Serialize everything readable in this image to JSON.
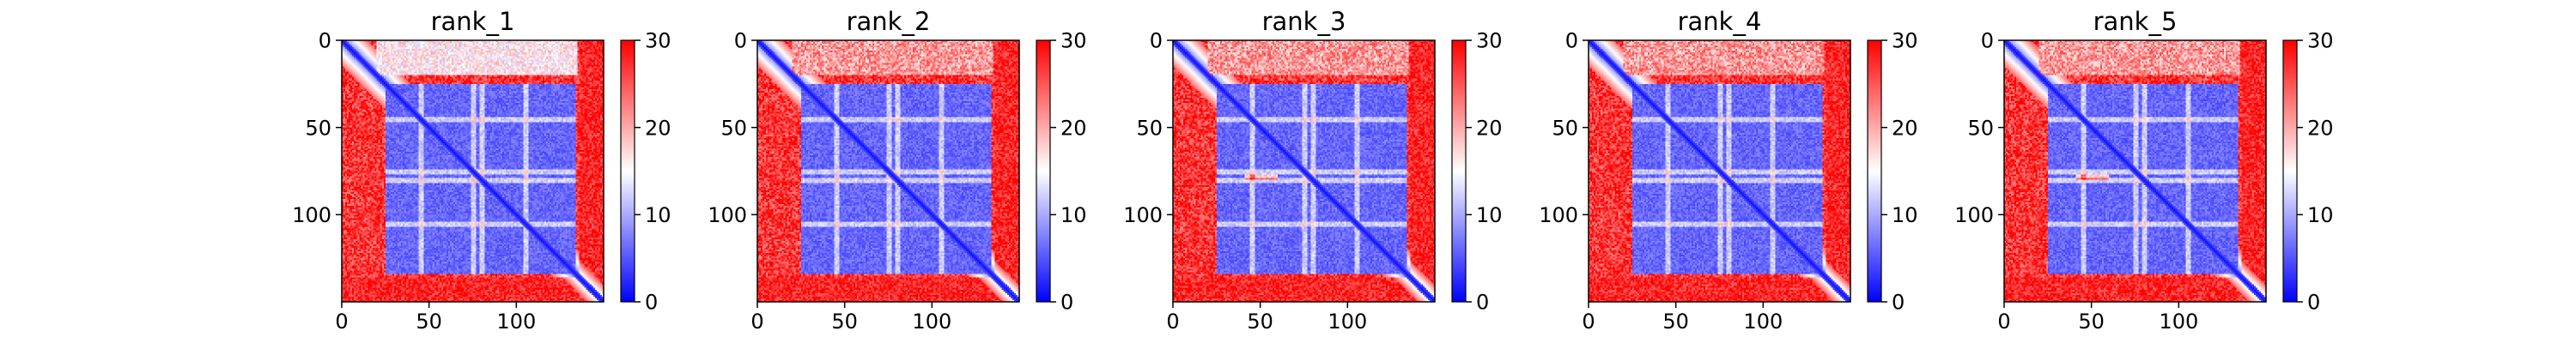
{
  "chart_data": [
    {
      "type": "heatmap",
      "title": "rank_1",
      "x_ticks": [
        0,
        50,
        100
      ],
      "y_ticks": [
        0,
        50,
        100
      ],
      "xlim": [
        0,
        150
      ],
      "ylim": [
        150,
        0
      ],
      "matrix_size": 150,
      "colorbar": {
        "ticks": [
          0,
          10,
          20,
          30
        ],
        "range": [
          0,
          30
        ],
        "colormap": "bwr"
      },
      "colors": {
        "low": "#0000ff",
        "mid": "#ffffff",
        "high": "#ff0000"
      }
    },
    {
      "type": "heatmap",
      "title": "rank_2",
      "x_ticks": [
        0,
        50,
        100
      ],
      "y_ticks": [
        0,
        50,
        100
      ],
      "xlim": [
        0,
        150
      ],
      "ylim": [
        150,
        0
      ],
      "matrix_size": 150,
      "colorbar": {
        "ticks": [
          0,
          10,
          20,
          30
        ],
        "range": [
          0,
          30
        ],
        "colormap": "bwr"
      },
      "colors": {
        "low": "#0000ff",
        "mid": "#ffffff",
        "high": "#ff0000"
      }
    },
    {
      "type": "heatmap",
      "title": "rank_3",
      "x_ticks": [
        0,
        50,
        100
      ],
      "y_ticks": [
        0,
        50,
        100
      ],
      "xlim": [
        0,
        150
      ],
      "ylim": [
        150,
        0
      ],
      "matrix_size": 150,
      "colorbar": {
        "ticks": [
          0,
          10,
          20,
          30
        ],
        "range": [
          0,
          30
        ],
        "colormap": "bwr"
      },
      "colors": {
        "low": "#0000ff",
        "mid": "#ffffff",
        "high": "#ff0000"
      }
    },
    {
      "type": "heatmap",
      "title": "rank_4",
      "x_ticks": [
        0,
        50,
        100
      ],
      "y_ticks": [
        0,
        50,
        100
      ],
      "xlim": [
        0,
        150
      ],
      "ylim": [
        150,
        0
      ],
      "matrix_size": 150,
      "colorbar": {
        "ticks": [
          0,
          10,
          20,
          30
        ],
        "range": [
          0,
          30
        ],
        "colormap": "bwr"
      },
      "colors": {
        "low": "#0000ff",
        "mid": "#ffffff",
        "high": "#ff0000"
      }
    },
    {
      "type": "heatmap",
      "title": "rank_5",
      "x_ticks": [
        0,
        50,
        100
      ],
      "y_ticks": [
        0,
        50,
        100
      ],
      "xlim": [
        0,
        150
      ],
      "ylim": [
        150,
        0
      ],
      "matrix_size": 150,
      "colorbar": {
        "ticks": [
          0,
          10,
          20,
          30
        ],
        "range": [
          0,
          30
        ],
        "colormap": "bwr"
      },
      "colors": {
        "low": "#0000ff",
        "mid": "#ffffff",
        "high": "#ff0000"
      }
    }
  ]
}
